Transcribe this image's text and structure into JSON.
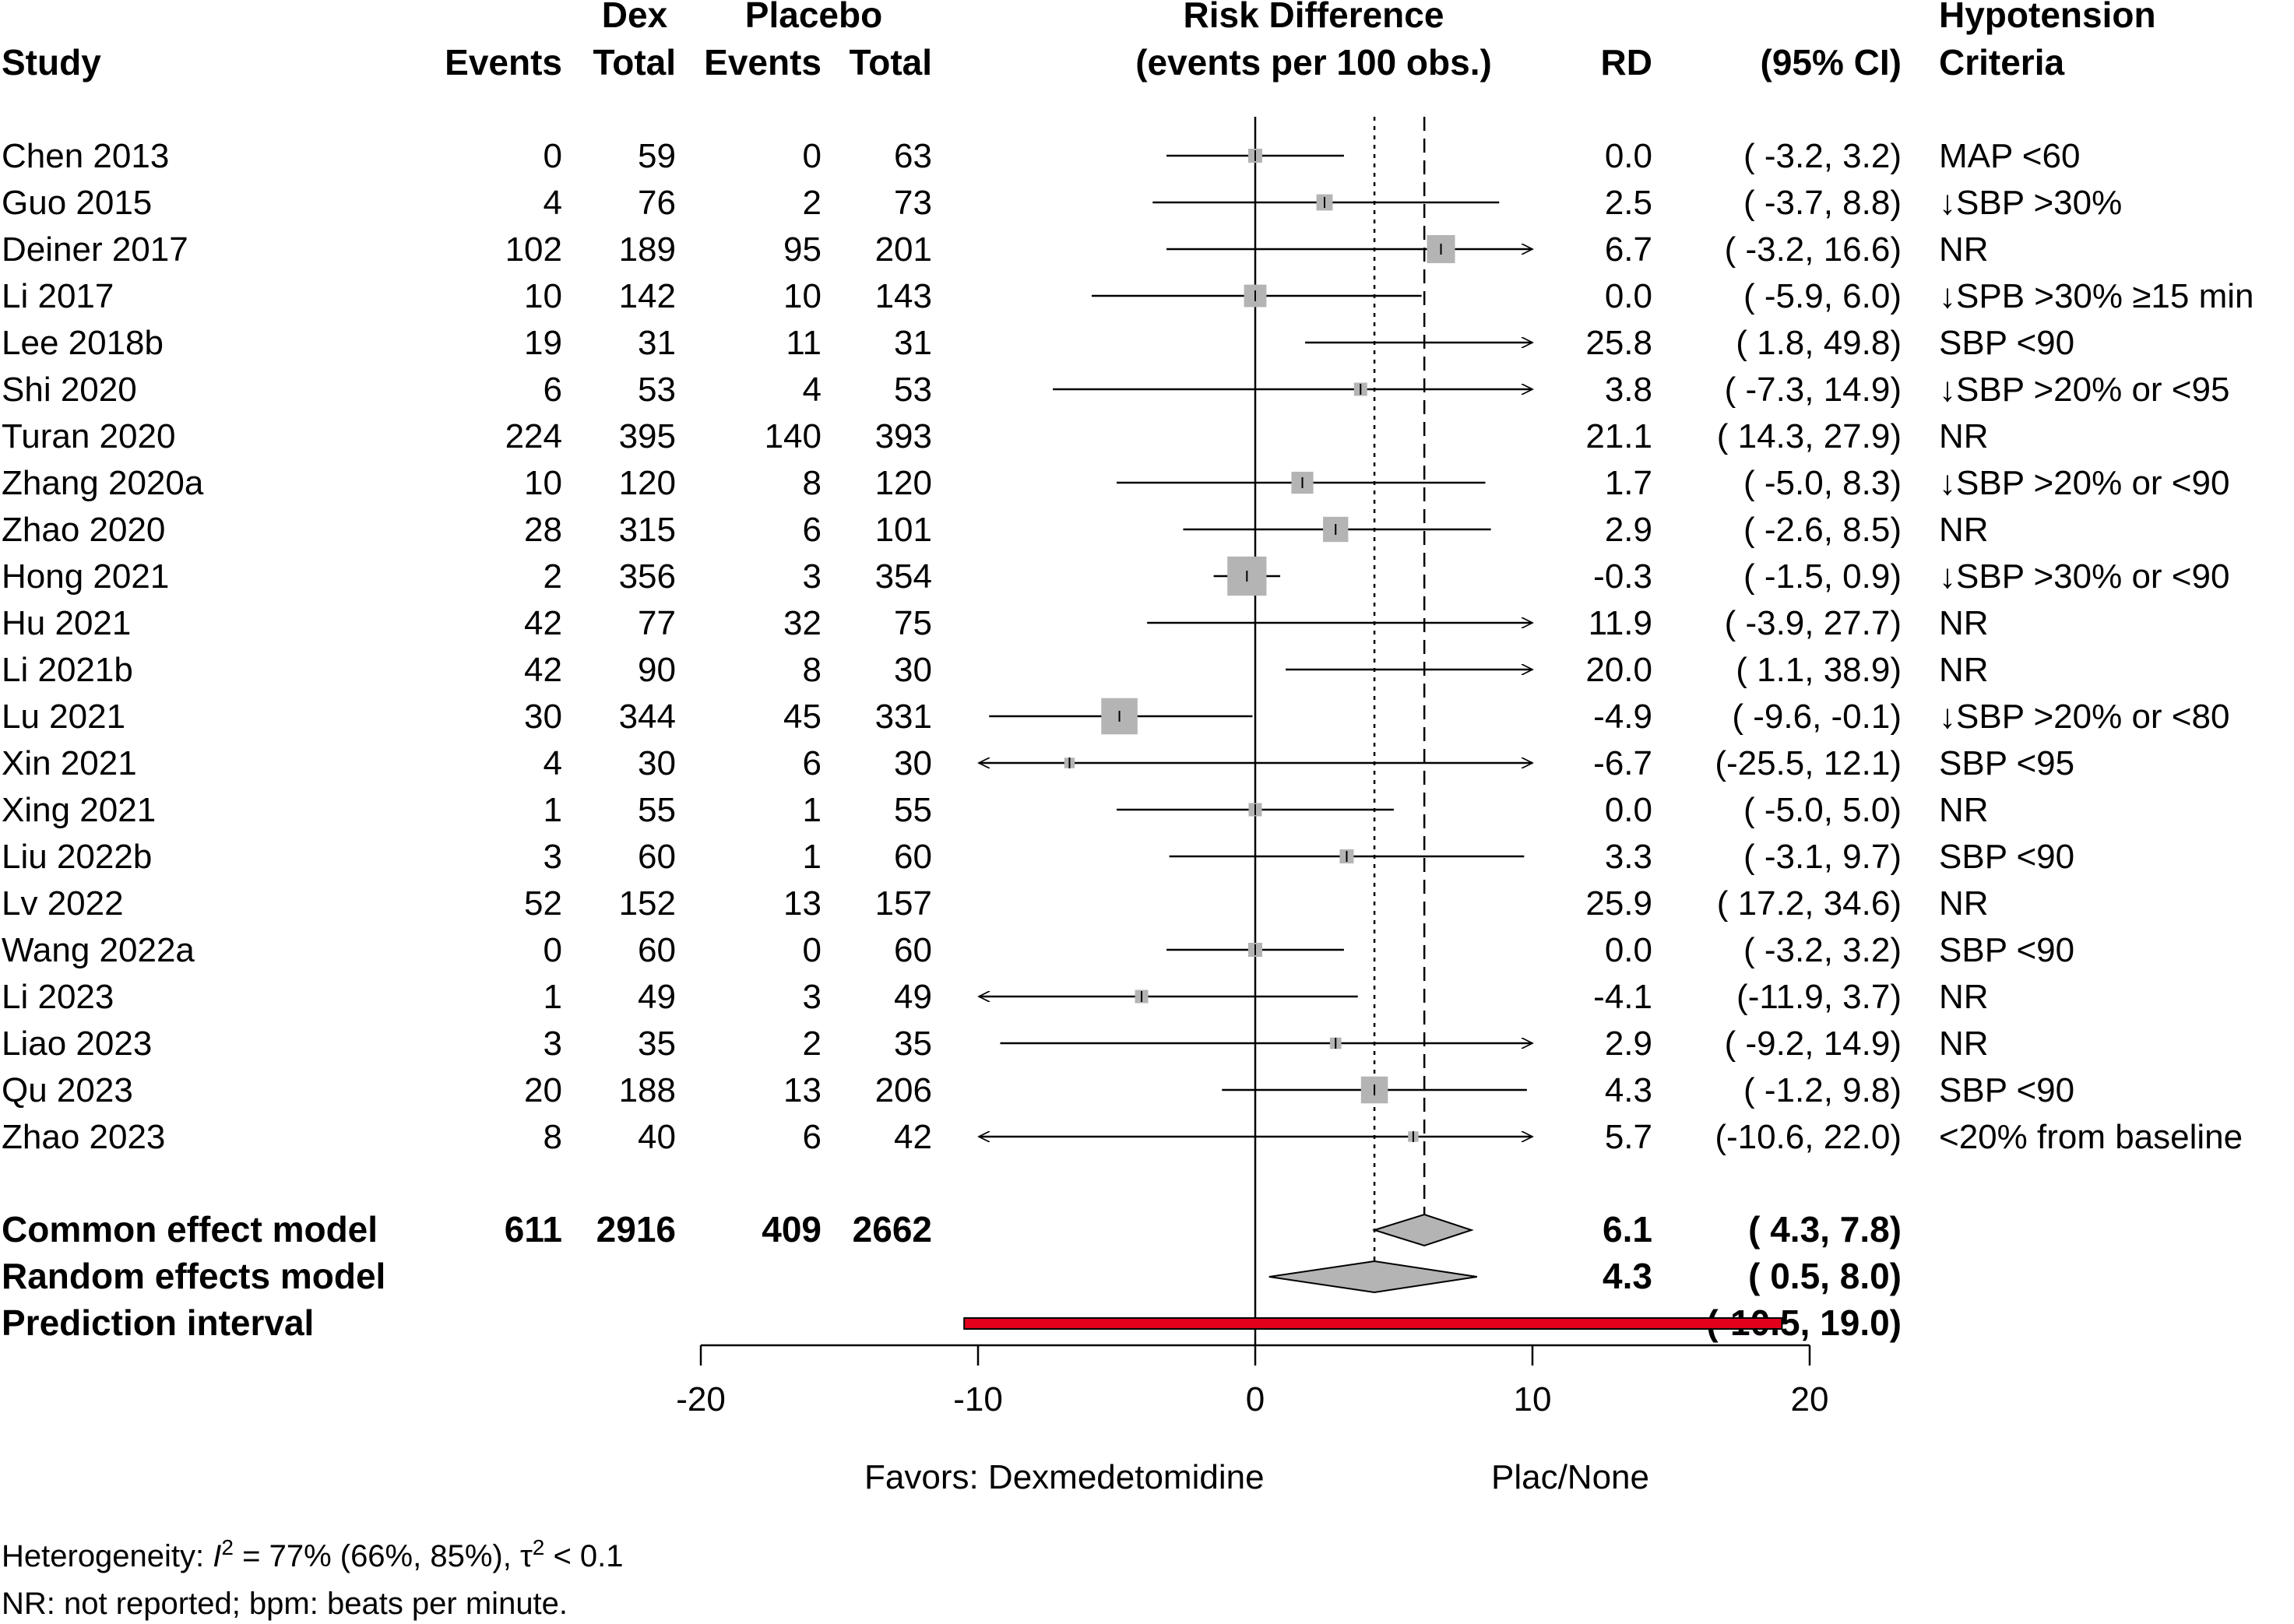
{
  "headers": {
    "study": "Study",
    "dex": "Dex",
    "events_dex": "Events",
    "total_dex": "Total",
    "placebo": "Placebo",
    "events_pl": "Events",
    "total_pl": "Total",
    "plot_title1": "Risk Difference",
    "plot_title2": "(events per 100 obs.)",
    "rd": "RD",
    "ci": "(95% CI)",
    "crit1": "Hypotension",
    "crit2": "Criteria"
  },
  "chart_data": {
    "type": "forest",
    "xlim": [
      -20,
      20
    ],
    "xticks": [
      "-20",
      "-10",
      "0",
      "10",
      "20"
    ],
    "null_value": 0,
    "common_estimate": 6.1,
    "random_estimate": 4.3,
    "favors_left": "Favors: Dexmedetomidine",
    "favors_right": "Plac/None",
    "studies": [
      {
        "study": "Chen 2013",
        "e_dex": "0",
        "n_dex": "59",
        "e_pl": "0",
        "n_pl": "63",
        "rd": 0.0,
        "lo": -3.2,
        "hi": 3.2,
        "weight": 0.9,
        "rd_text": "0.0",
        "ci_text": "( -3.2,  3.2)",
        "criteria": "MAP <60"
      },
      {
        "study": "Guo 2015",
        "e_dex": "4",
        "n_dex": "76",
        "e_pl": "2",
        "n_pl": "73",
        "rd": 2.5,
        "lo": -3.7,
        "hi": 8.8,
        "weight": 1.2,
        "rd_text": "2.5",
        "ci_text": "( -3.7,  8.8)",
        "criteria": "↓SBP >30%"
      },
      {
        "study": "Deiner 2017",
        "e_dex": "102",
        "n_dex": "189",
        "e_pl": "95",
        "n_pl": "201",
        "rd": 6.7,
        "lo": -3.2,
        "hi": 16.6,
        "weight": 3.6,
        "rd_text": "6.7",
        "ci_text": "( -3.2, 16.6)",
        "criteria": "NR"
      },
      {
        "study": "Li 2017",
        "e_dex": "10",
        "n_dex": "142",
        "e_pl": "10",
        "n_pl": "143",
        "rd": 0.0,
        "lo": -5.9,
        "hi": 6.0,
        "weight": 2.3,
        "rd_text": "0.0",
        "ci_text": "( -5.9,  6.0)",
        "criteria": "↓SPB >30% ≥15 min"
      },
      {
        "study": "Lee 2018b",
        "e_dex": "19",
        "n_dex": "31",
        "e_pl": "11",
        "n_pl": "31",
        "rd": 25.8,
        "lo": 1.8,
        "hi": 49.8,
        "weight": 0.3,
        "rd_text": "25.8",
        "ci_text": "(  1.8, 49.8)",
        "criteria": "SBP <90"
      },
      {
        "study": "Shi 2020",
        "e_dex": "6",
        "n_dex": "53",
        "e_pl": "4",
        "n_pl": "53",
        "rd": 3.8,
        "lo": -7.3,
        "hi": 14.9,
        "weight": 0.8,
        "rd_text": "3.8",
        "ci_text": "( -7.3, 14.9)",
        "criteria": "↓SBP >20% or <95"
      },
      {
        "study": "Turan 2020",
        "e_dex": "224",
        "n_dex": "395",
        "e_pl": "140",
        "n_pl": "393",
        "rd": 21.1,
        "lo": 14.3,
        "hi": 27.9,
        "weight": 3.0,
        "rd_text": "21.1",
        "ci_text": "( 14.3, 27.9)",
        "criteria": "NR"
      },
      {
        "study": "Zhang 2020a",
        "e_dex": "10",
        "n_dex": "120",
        "e_pl": "8",
        "n_pl": "120",
        "rd": 1.7,
        "lo": -5.0,
        "hi": 8.3,
        "weight": 2.2,
        "rd_text": "1.7",
        "ci_text": "( -5.0,  8.3)",
        "criteria": "↓SBP >20% or <90"
      },
      {
        "study": "Zhao 2020",
        "e_dex": "28",
        "n_dex": "315",
        "e_pl": "6",
        "n_pl": "101",
        "rd": 2.9,
        "lo": -2.6,
        "hi": 8.5,
        "weight": 2.9,
        "rd_text": "2.9",
        "ci_text": "( -2.6,  8.5)",
        "criteria": "NR"
      },
      {
        "study": "Hong 2021",
        "e_dex": "2",
        "n_dex": "356",
        "e_pl": "3",
        "n_pl": "354",
        "rd": -0.3,
        "lo": -1.5,
        "hi": 0.9,
        "weight": 7.0,
        "rd_text": "-0.3",
        "ci_text": "( -1.5,  0.9)",
        "criteria": "↓SBP >30% or <90"
      },
      {
        "study": "Hu 2021",
        "e_dex": "42",
        "n_dex": "77",
        "e_pl": "32",
        "n_pl": "75",
        "rd": 11.9,
        "lo": -3.9,
        "hi": 27.7,
        "weight": 1.4,
        "rd_text": "11.9",
        "ci_text": "( -3.9, 27.7)",
        "criteria": "NR"
      },
      {
        "study": "Li 2021b",
        "e_dex": "42",
        "n_dex": "90",
        "e_pl": "8",
        "n_pl": "30",
        "rd": 20.0,
        "lo": 1.1,
        "hi": 38.9,
        "weight": 0.8,
        "rd_text": "20.0",
        "ci_text": "(  1.1, 38.9)",
        "criteria": "NR"
      },
      {
        "study": "Lu 2021",
        "e_dex": "30",
        "n_dex": "344",
        "e_pl": "45",
        "n_pl": "331",
        "rd": -4.9,
        "lo": -9.6,
        "hi": -0.1,
        "weight": 6.0,
        "rd_text": "-4.9",
        "ci_text": "( -9.6, -0.1)",
        "criteria": "↓SBP >20% or <80"
      },
      {
        "study": "Xin 2021",
        "e_dex": "4",
        "n_dex": "30",
        "e_pl": "6",
        "n_pl": "30",
        "rd": -6.7,
        "lo": -25.5,
        "hi": 12.1,
        "weight": 0.5,
        "rd_text": "-6.7",
        "ci_text": "(-25.5, 12.1)",
        "criteria": "SBP <95"
      },
      {
        "study": "Xing 2021",
        "e_dex": "1",
        "n_dex": "55",
        "e_pl": "1",
        "n_pl": "55",
        "rd": 0.0,
        "lo": -5.0,
        "hi": 5.0,
        "weight": 0.8,
        "rd_text": "0.0",
        "ci_text": "( -5.0,  5.0)",
        "criteria": "NR"
      },
      {
        "study": "Liu 2022b",
        "e_dex": "3",
        "n_dex": "60",
        "e_pl": "1",
        "n_pl": "60",
        "rd": 3.3,
        "lo": -3.1,
        "hi": 9.7,
        "weight": 0.9,
        "rd_text": "3.3",
        "ci_text": "( -3.1,  9.7)",
        "criteria": "SBP <90"
      },
      {
        "study": "Lv 2022",
        "e_dex": "52",
        "n_dex": "152",
        "e_pl": "13",
        "n_pl": "157",
        "rd": 25.9,
        "lo": 17.2,
        "hi": 34.6,
        "weight": 2.0,
        "rd_text": "25.9",
        "ci_text": "( 17.2, 34.6)",
        "criteria": "NR"
      },
      {
        "study": "Wang 2022a",
        "e_dex": "0",
        "n_dex": "60",
        "e_pl": "0",
        "n_pl": "60",
        "rd": 0.0,
        "lo": -3.2,
        "hi": 3.2,
        "weight": 0.9,
        "rd_text": "0.0",
        "ci_text": "( -3.2,  3.2)",
        "criteria": "SBP <90"
      },
      {
        "study": "Li 2023",
        "e_dex": "1",
        "n_dex": "49",
        "e_pl": "3",
        "n_pl": "49",
        "rd": -4.1,
        "lo": -11.9,
        "hi": 3.7,
        "weight": 0.8,
        "rd_text": "-4.1",
        "ci_text": "(-11.9,  3.7)",
        "criteria": "NR"
      },
      {
        "study": "Liao 2023",
        "e_dex": "3",
        "n_dex": "35",
        "e_pl": "2",
        "n_pl": "35",
        "rd": 2.9,
        "lo": -9.2,
        "hi": 14.9,
        "weight": 0.6,
        "rd_text": "2.9",
        "ci_text": "( -9.2, 14.9)",
        "criteria": "NR"
      },
      {
        "study": "Qu 2023",
        "e_dex": "20",
        "n_dex": "188",
        "e_pl": "13",
        "n_pl": "206",
        "rd": 4.3,
        "lo": -1.2,
        "hi": 9.8,
        "weight": 3.3,
        "rd_text": "4.3",
        "ci_text": "( -1.2,  9.8)",
        "criteria": "SBP <90"
      },
      {
        "study": "Zhao 2023",
        "e_dex": "8",
        "n_dex": "40",
        "e_pl": "6",
        "n_pl": "42",
        "rd": 5.7,
        "lo": -10.6,
        "hi": 22.0,
        "weight": 0.5,
        "rd_text": "5.7",
        "ci_text": "(-10.6, 22.0)",
        "criteria": "<20% from baseline"
      }
    ],
    "summary": [
      {
        "label": "Common effect model",
        "e_dex": "611",
        "n_dex": "2916",
        "e_pl": "409",
        "n_pl": "2662",
        "est": 6.1,
        "lo": 4.3,
        "hi": 7.8,
        "rd_text": "6.1",
        "ci_text": "(  4.3,  7.8)"
      },
      {
        "label": "Random effects model",
        "e_dex": "",
        "n_dex": "",
        "e_pl": "",
        "n_pl": "",
        "est": 4.3,
        "lo": 0.5,
        "hi": 8.0,
        "rd_text": "4.3",
        "ci_text": "(  0.5,  8.0)"
      }
    ],
    "prediction": {
      "label": "Prediction interval",
      "lo": -10.5,
      "hi": 19.0,
      "ci_text": "(-10.5, 19.0)",
      "color": "#e3001b"
    }
  },
  "footer": {
    "heterogeneity_prefix": "Heterogeneity: ",
    "heterogeneity_i": "I",
    "heterogeneity_sup": "2",
    "heterogeneity_rest": " = 77% (66%, 85%), τ",
    "heterogeneity_tau_sup": "2",
    "heterogeneity_end": " < 0.1",
    "note": "NR: not reported; bpm: beats per minute."
  },
  "colors": {
    "square": "#b4b4b4",
    "diamond": "#b4b4b4",
    "prediction": "#e3001b"
  }
}
